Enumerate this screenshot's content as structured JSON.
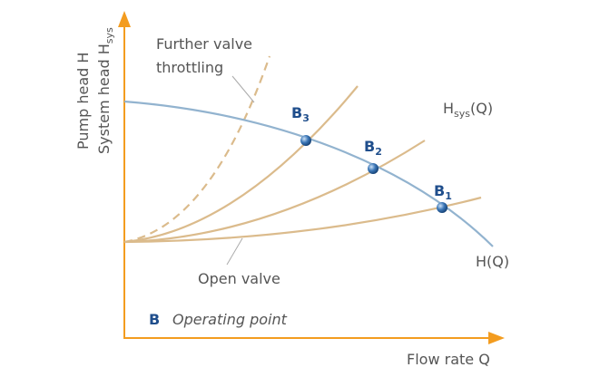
{
  "axes": {
    "y_label_line1": "Pump head H",
    "y_label_line2": {
      "text": "System head H",
      "sub": "sys"
    },
    "x_label": "Flow rate Q"
  },
  "annotations": {
    "further_valve": [
      "Further valve",
      "throttling"
    ],
    "open_valve": "Open valve",
    "system_curve": {
      "text": "H",
      "sub": "sys",
      "suffix": "(Q)"
    },
    "pump_curve": "H(Q)"
  },
  "operating_points": [
    {
      "label": "B",
      "sub": "1"
    },
    {
      "label": "B",
      "sub": "2"
    },
    {
      "label": "B",
      "sub": "3"
    }
  ],
  "legend": {
    "symbol": "B",
    "text": "Operating point"
  }
}
